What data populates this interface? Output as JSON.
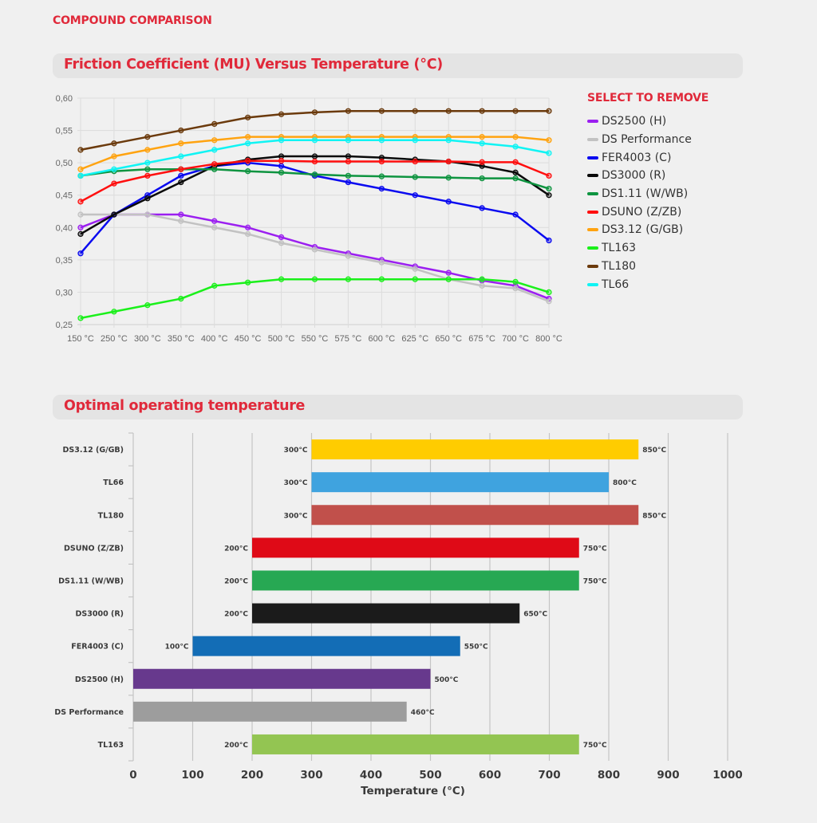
{
  "page": {
    "kicker": "COMPOUND COMPARISON"
  },
  "sections": {
    "friction_title": "Friction Coefficient (MU) Versus Temperature (°C)",
    "optimal_title": "Optimal operating temperature"
  },
  "legend": {
    "title": "SELECT TO REMOVE"
  },
  "chart_data": [
    {
      "type": "line",
      "title": "Friction Coefficient (MU) Versus Temperature (°C)",
      "xlabel": "",
      "ylabel": "",
      "categories": [
        "150 °C",
        "250 °C",
        "300 °C",
        "350 °C",
        "400 °C",
        "450 °C",
        "500 °C",
        "550 °C",
        "575 °C",
        "600 °C",
        "625 °C",
        "650 °C",
        "675 °C",
        "700 °C",
        "800 °C"
      ],
      "y_ticks": [
        "0,25",
        "0,30",
        "0,35",
        "0,40",
        "0,45",
        "0,50",
        "0,55",
        "0,60"
      ],
      "ylim": [
        0.25,
        0.6
      ],
      "grid": true,
      "legend_position": "right",
      "series": [
        {
          "name": "DS2500 (H)",
          "color": "#9b1ff0",
          "values": [
            0.4,
            0.42,
            0.42,
            0.42,
            0.41,
            0.4,
            0.385,
            0.37,
            0.36,
            0.35,
            0.34,
            0.33,
            0.318,
            0.31,
            0.29
          ]
        },
        {
          "name": "DS Performance",
          "color": "#c2c2c2",
          "values": [
            0.42,
            0.42,
            0.42,
            0.41,
            0.4,
            0.39,
            0.376,
            0.366,
            0.356,
            0.346,
            0.336,
            0.32,
            0.31,
            0.306,
            0.286
          ]
        },
        {
          "name": "FER4003 (C)",
          "color": "#0a0af0",
          "values": [
            0.36,
            0.42,
            0.45,
            0.48,
            0.495,
            0.5,
            0.495,
            0.48,
            0.47,
            0.46,
            0.45,
            0.44,
            0.43,
            0.42,
            0.38
          ]
        },
        {
          "name": "DS3000 (R)",
          "color": "#0a0a0a",
          "values": [
            0.39,
            0.42,
            0.445,
            0.47,
            0.495,
            0.505,
            0.51,
            0.51,
            0.51,
            0.508,
            0.505,
            0.502,
            0.495,
            0.485,
            0.45
          ]
        },
        {
          "name": "DS1.11 (W/WB)",
          "color": "#0e9440",
          "values": [
            0.48,
            0.487,
            0.49,
            0.49,
            0.49,
            0.487,
            0.485,
            0.482,
            0.48,
            0.479,
            0.478,
            0.477,
            0.476,
            0.476,
            0.46
          ]
        },
        {
          "name": "DSUNO (Z/ZB)",
          "color": "#ff0f0f",
          "values": [
            0.44,
            0.468,
            0.48,
            0.49,
            0.498,
            0.503,
            0.503,
            0.502,
            0.502,
            0.502,
            0.502,
            0.502,
            0.501,
            0.501,
            0.48
          ]
        },
        {
          "name": "DS3.12 (G/GB)",
          "color": "#ffa310",
          "values": [
            0.49,
            0.51,
            0.52,
            0.53,
            0.535,
            0.54,
            0.54,
            0.54,
            0.54,
            0.54,
            0.54,
            0.54,
            0.54,
            0.54,
            0.535
          ]
        },
        {
          "name": "TL163",
          "color": "#1af01a",
          "values": [
            0.26,
            0.27,
            0.28,
            0.29,
            0.31,
            0.315,
            0.32,
            0.32,
            0.32,
            0.32,
            0.32,
            0.32,
            0.32,
            0.316,
            0.3
          ]
        },
        {
          "name": "TL180",
          "color": "#6b3a0c",
          "values": [
            0.52,
            0.53,
            0.54,
            0.55,
            0.56,
            0.57,
            0.575,
            0.578,
            0.58,
            0.58,
            0.58,
            0.58,
            0.58,
            0.58,
            0.58
          ]
        },
        {
          "name": "TL66",
          "color": "#10f4f4",
          "values": [
            0.48,
            0.49,
            0.5,
            0.51,
            0.52,
            0.53,
            0.535,
            0.535,
            0.535,
            0.535,
            0.535,
            0.535,
            0.53,
            0.525,
            0.515
          ]
        }
      ]
    },
    {
      "type": "bar",
      "orientation": "horizontal-range",
      "title": "Optimal operating temperature",
      "xlabel": "Temperature (°C)",
      "ylabel": "",
      "xlim": [
        0,
        1000
      ],
      "x_ticks": [
        "0",
        "100",
        "200",
        "300",
        "400",
        "500",
        "600",
        "700",
        "800",
        "900",
        "1000"
      ],
      "grid": true,
      "unit_suffix": "°C",
      "categories": [
        "DS3.12 (G/GB)",
        "TL66",
        "TL180",
        "DSUNO (Z/ZB)",
        "DS1.11 (W/WB)",
        "DS3000 (R)",
        "FER4003 (C)",
        "DS2500 (H)",
        "DS Performance",
        "TL163"
      ],
      "series": [
        {
          "name": "min",
          "values": [
            300,
            300,
            300,
            200,
            200,
            200,
            100,
            0,
            0,
            200
          ]
        },
        {
          "name": "max",
          "values": [
            850,
            800,
            850,
            750,
            750,
            650,
            550,
            500,
            460,
            750
          ]
        }
      ],
      "min_labels": [
        "300°C",
        "300°C",
        "300°C",
        "200°C",
        "200°C",
        "200°C",
        "100°C",
        "",
        "",
        "200°C"
      ],
      "max_labels": [
        "850°C",
        "800°C",
        "850°C",
        "750°C",
        "750°C",
        "650°C",
        "550°C",
        "500°C",
        "460°C",
        "750°C"
      ],
      "colors": [
        "#ffcc00",
        "#3fa3df",
        "#c1504b",
        "#df0a17",
        "#27a853",
        "#1b1b1b",
        "#136db6",
        "#67398d",
        "#9d9d9d",
        "#93c552"
      ]
    }
  ]
}
